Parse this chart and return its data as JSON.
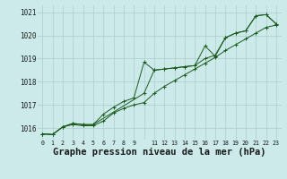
{
  "bg_color": "#cceaea",
  "grid_color": "#aacccc",
  "line_color": "#1a5c1a",
  "marker_color": "#1a5c1a",
  "xlabel": "Graphe pression niveau de la mer (hPa)",
  "xlabel_fontsize": 7.5,
  "ylim": [
    1015.5,
    1021.3
  ],
  "xlim": [
    -0.5,
    23.5
  ],
  "yticks": [
    1016,
    1017,
    1018,
    1019,
    1020,
    1021
  ],
  "xticks": [
    0,
    1,
    2,
    3,
    4,
    5,
    6,
    7,
    8,
    9,
    10,
    11,
    12,
    13,
    14,
    15,
    16,
    17,
    18,
    19,
    20,
    21,
    22,
    23
  ],
  "xtick_labels": [
    "0",
    "1",
    "2",
    "3",
    "4",
    "5",
    "6",
    "7",
    "8",
    "9",
    "",
    "11",
    "12",
    "13",
    "14",
    "15",
    "16",
    "17",
    "18",
    "19",
    "20",
    "21",
    "22",
    "23"
  ],
  "series1_x": [
    0,
    1,
    2,
    3,
    4,
    5,
    6,
    7,
    8,
    9,
    10,
    11,
    12,
    13,
    14,
    15,
    16,
    17,
    18,
    19,
    20,
    21,
    22,
    23
  ],
  "series1": [
    1015.75,
    1015.72,
    1016.05,
    1016.2,
    1016.15,
    1016.15,
    1016.6,
    1016.9,
    1017.15,
    1017.3,
    1018.85,
    1018.5,
    1018.55,
    1018.6,
    1018.65,
    1018.7,
    1019.55,
    1019.1,
    1019.9,
    1020.1,
    1020.2,
    1020.85,
    1020.9,
    1020.5
  ],
  "series2_x": [
    0,
    1,
    2,
    3,
    4,
    5,
    10,
    11,
    12,
    13,
    14,
    15,
    16,
    17,
    18,
    19,
    20,
    21,
    22,
    23
  ],
  "series2": [
    1015.75,
    1015.72,
    1016.05,
    1016.2,
    1016.15,
    1016.15,
    1017.5,
    1018.5,
    1018.55,
    1018.6,
    1018.65,
    1018.7,
    1019.0,
    1019.15,
    1019.9,
    1020.1,
    1020.2,
    1020.85,
    1020.9,
    1020.5
  ],
  "series3_x": [
    0,
    1,
    2,
    3,
    4,
    5,
    6,
    7,
    8,
    9,
    10,
    11,
    12,
    13,
    14,
    15,
    16,
    17,
    18,
    19,
    20,
    21,
    22,
    23
  ],
  "series3": [
    1015.75,
    1015.72,
    1016.05,
    1016.15,
    1016.1,
    1016.1,
    1016.3,
    1016.65,
    1016.85,
    1017.0,
    1017.1,
    1017.5,
    1017.8,
    1018.05,
    1018.3,
    1018.55,
    1018.8,
    1019.05,
    1019.35,
    1019.6,
    1019.85,
    1020.1,
    1020.35,
    1020.45
  ]
}
